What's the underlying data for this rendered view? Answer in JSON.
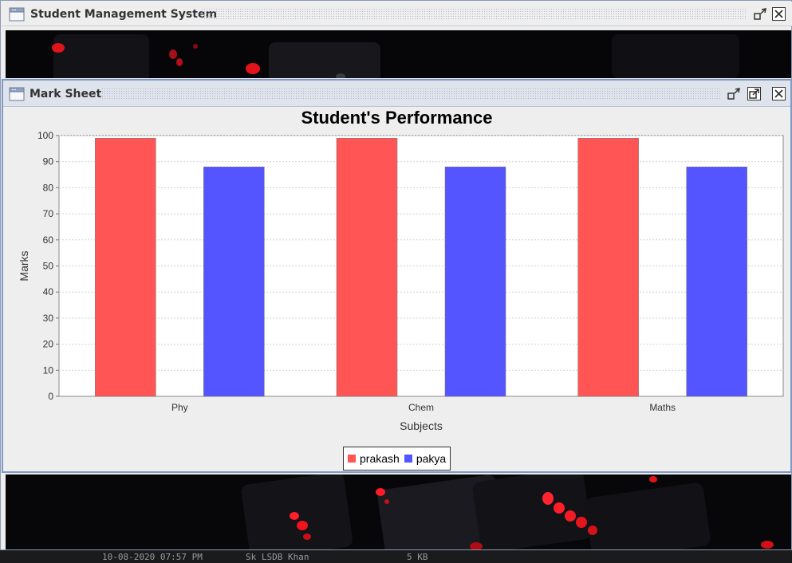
{
  "app": {
    "title": "Student Management System"
  },
  "window": {
    "title": "Mark Sheet"
  },
  "colors": {
    "prakash": "#ff5555",
    "pakya": "#5555ff",
    "frame_border": "#7f99c4"
  },
  "icons": [
    "window-icon",
    "iconify-icon",
    "maximize-icon",
    "close-icon"
  ],
  "chart_data": {
    "type": "bar",
    "title": "Student's Performance",
    "xlabel": "Subjects",
    "ylabel": "Marks",
    "categories": [
      "Phy",
      "Chem",
      "Maths"
    ],
    "series": [
      {
        "name": "prakash",
        "values": [
          99,
          99,
          99
        ]
      },
      {
        "name": "pakya",
        "values": [
          88,
          88,
          88
        ]
      }
    ],
    "ylim": [
      0,
      100
    ],
    "yticks": [
      0,
      10,
      20,
      30,
      40,
      50,
      60,
      70,
      80,
      90,
      100
    ],
    "grid": true,
    "legend_position": "bottom"
  },
  "statusbar": {
    "left": "10-08-2020 07:57 PM",
    "middle": "Sk LSDB Khan",
    "right": "5 KB"
  }
}
